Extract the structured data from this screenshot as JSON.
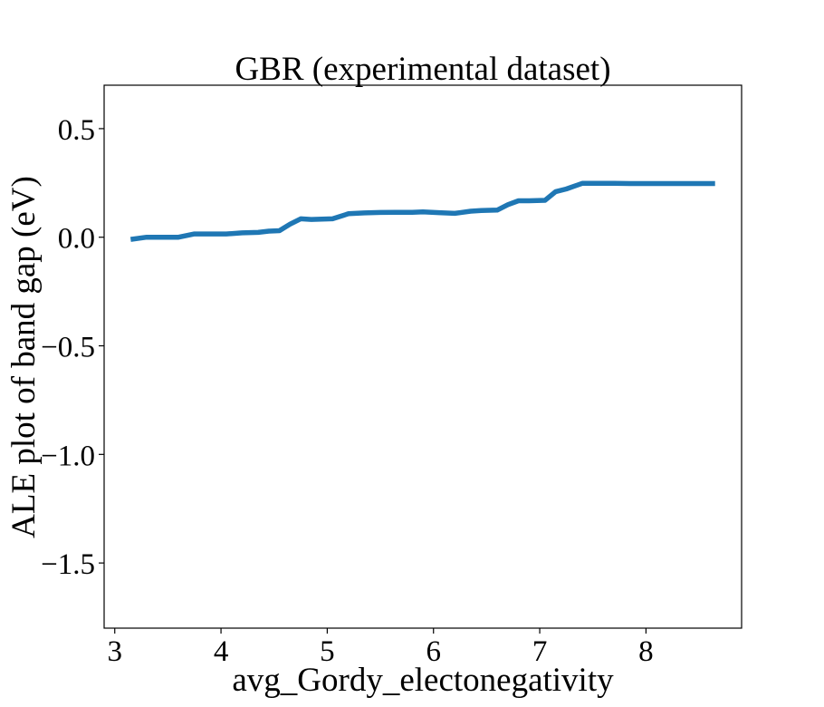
{
  "chart_data": {
    "type": "line",
    "title": "GBR (experimental dataset)",
    "xlabel": "avg_Gordy_electonegativity",
    "ylabel": "ALE plot of band gap (eV)",
    "xlim": [
      2.9,
      8.9
    ],
    "ylim": [
      -1.8,
      0.7
    ],
    "xticks": [
      3,
      4,
      5,
      6,
      7,
      8
    ],
    "xtick_labels": [
      "3",
      "4",
      "5",
      "6",
      "7",
      "8"
    ],
    "yticks": [
      0.5,
      0.0,
      -0.5,
      -1.0,
      -1.5
    ],
    "ytick_labels": [
      "0.5",
      "0.0",
      "−0.5",
      "−1.0",
      "−1.5"
    ],
    "grid": false,
    "series": [
      {
        "color": "#1f77b4",
        "x": [
          3.15,
          3.3,
          3.45,
          3.6,
          3.75,
          3.9,
          4.05,
          4.2,
          4.35,
          4.45,
          4.55,
          4.65,
          4.75,
          4.85,
          4.95,
          5.05,
          5.2,
          5.35,
          5.5,
          5.65,
          5.8,
          5.9,
          6.05,
          6.2,
          6.35,
          6.45,
          6.6,
          6.7,
          6.8,
          6.9,
          7.05,
          7.15,
          7.25,
          7.4,
          7.55,
          7.7,
          7.85,
          8.0,
          8.2,
          8.4,
          8.65
        ],
        "y": [
          -0.01,
          0.0,
          0.0,
          0.0,
          0.015,
          0.015,
          0.015,
          0.02,
          0.022,
          0.028,
          0.03,
          0.06,
          0.085,
          0.082,
          0.083,
          0.085,
          0.108,
          0.112,
          0.114,
          0.115,
          0.115,
          0.117,
          0.113,
          0.11,
          0.12,
          0.123,
          0.125,
          0.15,
          0.168,
          0.168,
          0.17,
          0.21,
          0.222,
          0.248,
          0.248,
          0.248,
          0.247,
          0.247,
          0.247,
          0.247,
          0.247
        ]
      }
    ]
  }
}
